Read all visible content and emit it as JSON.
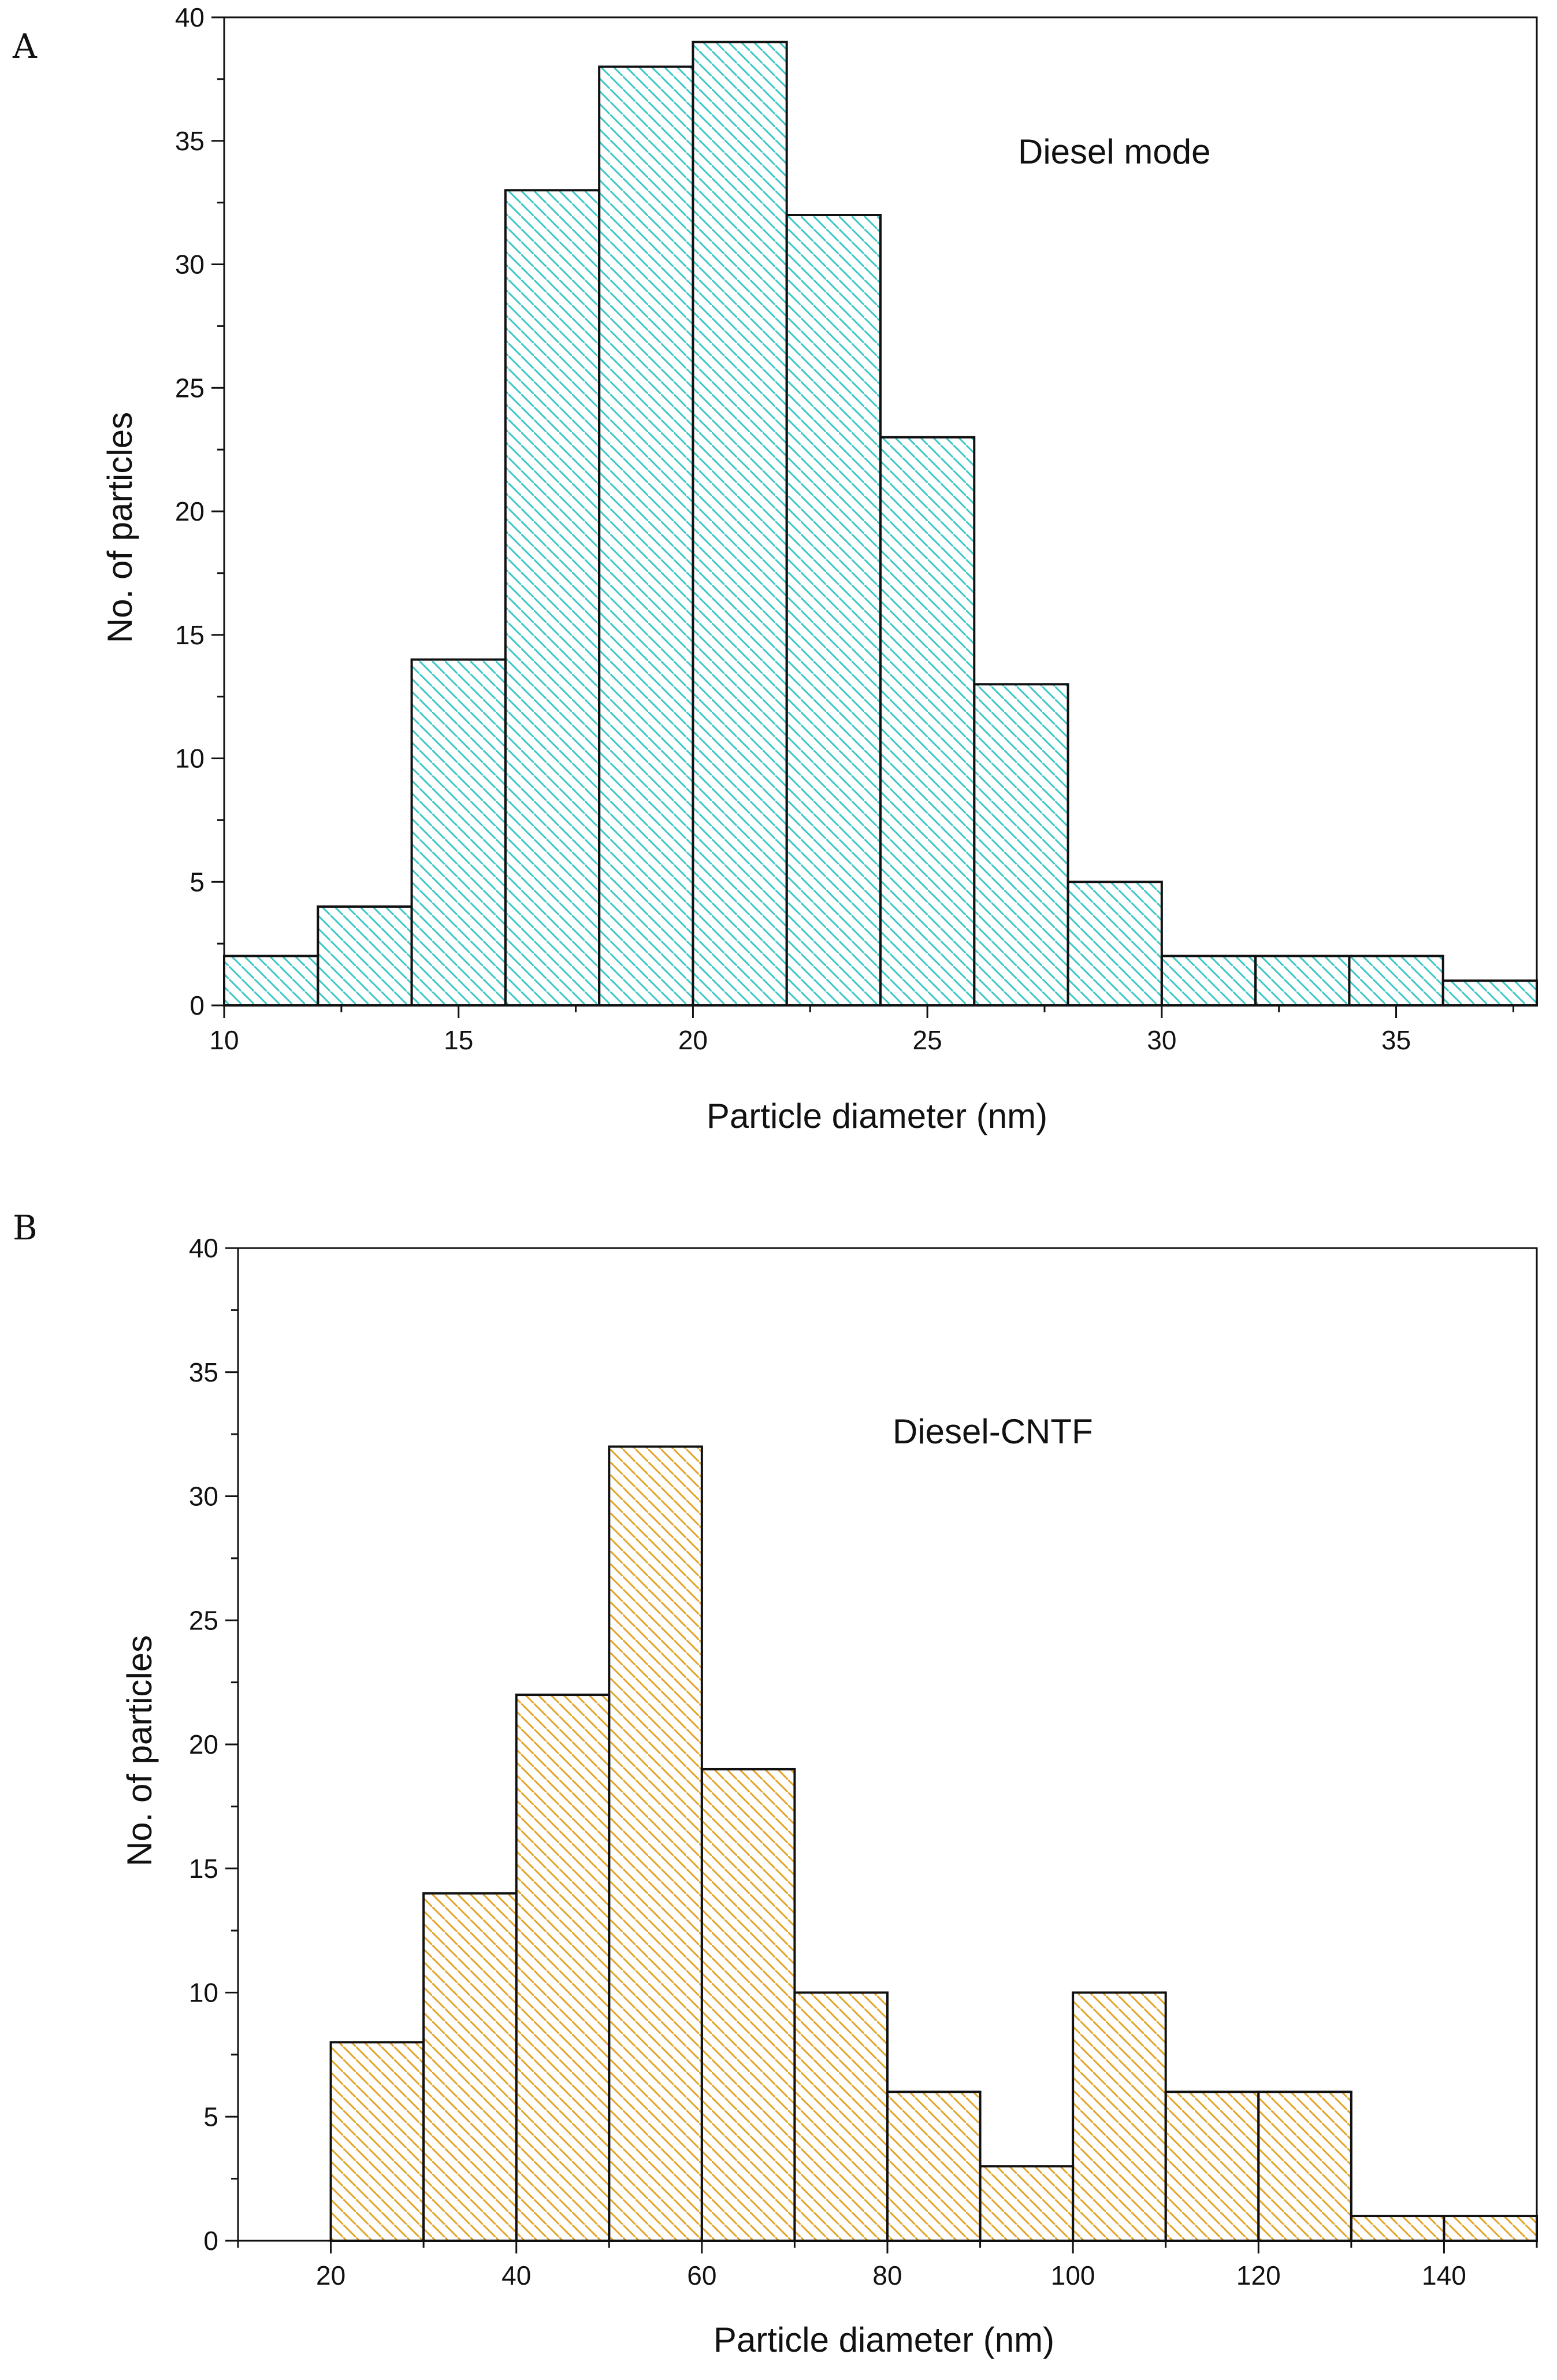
{
  "chart_data": [
    {
      "type": "bar",
      "panel_label": "A",
      "annotation": "Diesel mode",
      "xlabel": "Particle diameter (nm)",
      "ylabel": "No. of particles",
      "xlim": [
        10,
        38
      ],
      "ylim": [
        0,
        40
      ],
      "xticks": [
        10,
        15,
        20,
        25,
        30,
        35
      ],
      "yticks": [
        0,
        5,
        10,
        15,
        20,
        25,
        30,
        35,
        40
      ],
      "bin_width": 2,
      "bins": [
        10,
        12,
        14,
        16,
        18,
        20,
        22,
        24,
        26,
        28,
        30,
        32,
        34,
        36
      ],
      "values": [
        2,
        4,
        14,
        33,
        38,
        39,
        32,
        23,
        13,
        5,
        2,
        2,
        2,
        1
      ],
      "bar_color": "#3ec8c8",
      "edge_color": "#111111"
    },
    {
      "type": "bar",
      "panel_label": "B",
      "annotation": "Diesel-CNTF",
      "xlabel": "Particle diameter (nm)",
      "ylabel": "No. of particles",
      "xlim": [
        10,
        150
      ],
      "ylim": [
        0,
        40
      ],
      "xticks": [
        20,
        40,
        60,
        80,
        100,
        120,
        140
      ],
      "yticks": [
        0,
        5,
        10,
        15,
        20,
        25,
        30,
        35,
        40
      ],
      "bin_width": 10,
      "bins": [
        20,
        30,
        40,
        50,
        60,
        70,
        80,
        90,
        100,
        110,
        120,
        130,
        140
      ],
      "values": [
        8,
        14,
        22,
        32,
        19,
        10,
        6,
        3,
        10,
        6,
        6,
        1,
        1
      ],
      "bar_color": "#e3a52a",
      "edge_color": "#111111"
    }
  ]
}
